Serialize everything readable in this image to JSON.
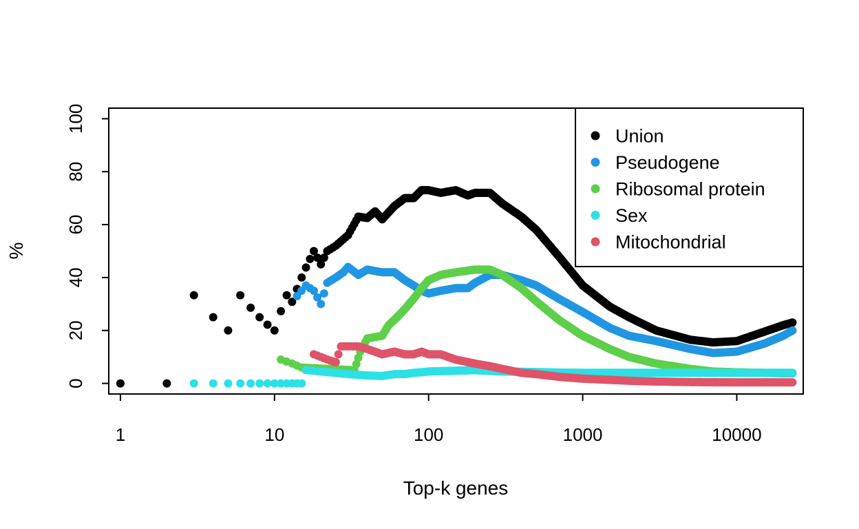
{
  "chart_data": {
    "type": "scatter",
    "title": "",
    "xlabel": "Top-k genes",
    "ylabel": "%",
    "x_scale": "log10",
    "xlim": [
      0.84,
      27000
    ],
    "ylim": [
      -4,
      104
    ],
    "x_ticks": [
      1,
      10,
      100,
      1000,
      10000
    ],
    "x_tick_labels": [
      "1",
      "10",
      "100",
      "1000",
      "10000"
    ],
    "y_ticks": [
      0,
      20,
      40,
      60,
      80,
      100
    ],
    "y_tick_labels": [
      "0",
      "20",
      "40",
      "60",
      "80",
      "100"
    ],
    "grid": false,
    "legend_position": "top-right",
    "series": [
      {
        "name": "Union",
        "color": "#000000",
        "points": [
          [
            1,
            0
          ],
          [
            2,
            0
          ],
          [
            3,
            33.3
          ],
          [
            4,
            25
          ],
          [
            5,
            20
          ],
          [
            6,
            33.3
          ],
          [
            7,
            28.6
          ],
          [
            8,
            25
          ],
          [
            9,
            22.2
          ],
          [
            10,
            20
          ],
          [
            11,
            27.3
          ],
          [
            12,
            33.3
          ],
          [
            13,
            30.8
          ],
          [
            14,
            35.7
          ],
          [
            15,
            40
          ],
          [
            16,
            43.8
          ],
          [
            17,
            47
          ],
          [
            18,
            50
          ],
          [
            20,
            45
          ],
          [
            22,
            50
          ],
          [
            25,
            52
          ],
          [
            30,
            56
          ],
          [
            35,
            63
          ],
          [
            40,
            62.5
          ],
          [
            45,
            65
          ],
          [
            50,
            62
          ],
          [
            60,
            67
          ],
          [
            70,
            70
          ],
          [
            80,
            70
          ],
          [
            90,
            73
          ],
          [
            100,
            73
          ],
          [
            120,
            72
          ],
          [
            150,
            73
          ],
          [
            180,
            71
          ],
          [
            200,
            72
          ],
          [
            250,
            72
          ],
          [
            300,
            68
          ],
          [
            400,
            63
          ],
          [
            500,
            58
          ],
          [
            700,
            48
          ],
          [
            1000,
            37
          ],
          [
            1500,
            29
          ],
          [
            2000,
            25
          ],
          [
            3000,
            20
          ],
          [
            5000,
            16.5
          ],
          [
            7000,
            15.5
          ],
          [
            10000,
            16
          ],
          [
            15000,
            19.5
          ],
          [
            20000,
            22
          ],
          [
            23000,
            23
          ]
        ]
      },
      {
        "name": "Pseudogene",
        "color": "#2196e3",
        "points": [
          [
            14,
            33
          ],
          [
            16,
            37
          ],
          [
            18,
            35
          ],
          [
            20,
            30
          ],
          [
            22,
            38
          ],
          [
            25,
            40
          ],
          [
            28,
            42
          ],
          [
            30,
            44
          ],
          [
            35,
            41
          ],
          [
            40,
            43
          ],
          [
            50,
            42
          ],
          [
            60,
            42
          ],
          [
            70,
            39
          ],
          [
            80,
            37
          ],
          [
            90,
            35
          ],
          [
            100,
            34
          ],
          [
            120,
            35
          ],
          [
            150,
            36
          ],
          [
            180,
            36
          ],
          [
            200,
            38
          ],
          [
            250,
            41
          ],
          [
            300,
            41
          ],
          [
            400,
            39
          ],
          [
            500,
            37
          ],
          [
            700,
            32
          ],
          [
            1000,
            27
          ],
          [
            1500,
            21
          ],
          [
            2000,
            18
          ],
          [
            3000,
            16
          ],
          [
            5000,
            13
          ],
          [
            7000,
            11.5
          ],
          [
            10000,
            12
          ],
          [
            15000,
            15
          ],
          [
            20000,
            18
          ],
          [
            23000,
            20
          ]
        ]
      },
      {
        "name": "Ribosomal protein",
        "color": "#5ecf4a",
        "points": [
          [
            11,
            9
          ],
          [
            13,
            7.5
          ],
          [
            15,
            6
          ],
          [
            33,
            5
          ],
          [
            36,
            12
          ],
          [
            40,
            17
          ],
          [
            50,
            18
          ],
          [
            55,
            22
          ],
          [
            60,
            24
          ],
          [
            70,
            28
          ],
          [
            80,
            32
          ],
          [
            90,
            36
          ],
          [
            100,
            39
          ],
          [
            120,
            41
          ],
          [
            150,
            42
          ],
          [
            200,
            43
          ],
          [
            250,
            43
          ],
          [
            300,
            41
          ],
          [
            400,
            36
          ],
          [
            500,
            31
          ],
          [
            700,
            24
          ],
          [
            1000,
            18
          ],
          [
            1500,
            13
          ],
          [
            2000,
            10
          ],
          [
            3000,
            7.5
          ],
          [
            5000,
            5.5
          ],
          [
            7000,
            4.5
          ],
          [
            10000,
            4.2
          ],
          [
            15000,
            4
          ],
          [
            20000,
            3.8
          ],
          [
            23000,
            3.8
          ]
        ]
      },
      {
        "name": "Sex",
        "color": "#2ce0e6",
        "points": [
          [
            3,
            0
          ],
          [
            4,
            0
          ],
          [
            5,
            0
          ],
          [
            6,
            0
          ],
          [
            7,
            0
          ],
          [
            8,
            0
          ],
          [
            9,
            0
          ],
          [
            10,
            0
          ],
          [
            11,
            0
          ],
          [
            12,
            0
          ],
          [
            13,
            0
          ],
          [
            14,
            0
          ],
          [
            15,
            0
          ],
          [
            16,
            5
          ],
          [
            20,
            4.5
          ],
          [
            30,
            3.5
          ],
          [
            40,
            3
          ],
          [
            50,
            2.8
          ],
          [
            60,
            3.5
          ],
          [
            70,
            3.5
          ],
          [
            80,
            4
          ],
          [
            90,
            4.2
          ],
          [
            100,
            4.5
          ],
          [
            150,
            4.8
          ],
          [
            200,
            5
          ],
          [
            300,
            4.5
          ],
          [
            500,
            4.3
          ],
          [
            700,
            4.1
          ],
          [
            1000,
            4
          ],
          [
            2000,
            4
          ],
          [
            5000,
            4
          ],
          [
            10000,
            4
          ],
          [
            20000,
            4
          ],
          [
            23000,
            4
          ]
        ]
      },
      {
        "name": "Mitochondrial",
        "color": "#df5468",
        "points": [
          [
            18,
            11
          ],
          [
            20,
            10
          ],
          [
            22,
            9
          ],
          [
            25,
            8
          ],
          [
            27,
            14
          ],
          [
            30,
            14
          ],
          [
            35,
            14
          ],
          [
            40,
            13
          ],
          [
            50,
            11
          ],
          [
            60,
            12
          ],
          [
            70,
            11
          ],
          [
            80,
            11
          ],
          [
            90,
            12
          ],
          [
            100,
            11
          ],
          [
            120,
            11
          ],
          [
            150,
            9
          ],
          [
            200,
            7.5
          ],
          [
            250,
            6.5
          ],
          [
            300,
            5.5
          ],
          [
            400,
            4
          ],
          [
            500,
            3.5
          ],
          [
            700,
            2.5
          ],
          [
            1000,
            1.8
          ],
          [
            2000,
            1
          ],
          [
            3000,
            0.7
          ],
          [
            5000,
            0.5
          ],
          [
            10000,
            0.4
          ],
          [
            20000,
            0.4
          ],
          [
            23000,
            0.4
          ]
        ]
      }
    ]
  }
}
